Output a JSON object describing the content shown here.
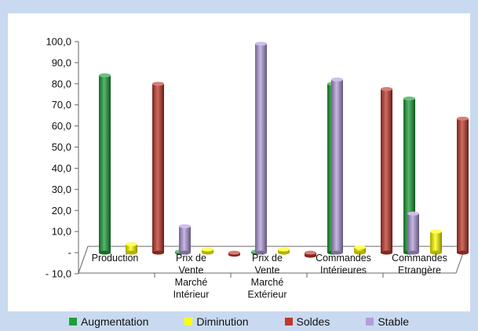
{
  "chart_data": {
    "type": "bar",
    "title": "",
    "xlabel": "",
    "ylabel": "",
    "ylim": [
      -10,
      100
    ],
    "yticks": [
      "100,0",
      "90,0",
      "80,0",
      "70,0",
      "60,0",
      "50,0",
      "40,0",
      "30,0",
      "20,0",
      "10,0",
      "-",
      "- 10,0"
    ],
    "ytick_values": [
      100,
      90,
      80,
      70,
      60,
      50,
      40,
      30,
      20,
      10,
      0,
      -10
    ],
    "categories": [
      [
        "Production"
      ],
      [
        "Prix de",
        "Vente",
        "Marché",
        "Intérieur"
      ],
      [
        "Prix de",
        "Vente",
        "Marché",
        "Extérieur"
      ],
      [
        "Commandes",
        "Intérieures"
      ],
      [
        "Commandes",
        "Etrangère"
      ]
    ],
    "series": [
      {
        "name": "Augmentation",
        "color": "#1e9e3a",
        "values": [
          84,
          0.5,
          0.5,
          80,
          73
        ]
      },
      {
        "name": "Diminution",
        "color": "#ffff00",
        "values": [
          4,
          1.5,
          1.5,
          2.5,
          10
        ]
      },
      {
        "name": "Soldes",
        "color": "#c0392b",
        "values": [
          80,
          -1,
          -1.5,
          77.5,
          63.5
        ]
      },
      {
        "name": "Stable",
        "color": "#b39ddb",
        "values": [
          12.5,
          99,
          82,
          18.5,
          0.5
        ]
      }
    ],
    "grid": false,
    "legend_position": "bottom"
  }
}
